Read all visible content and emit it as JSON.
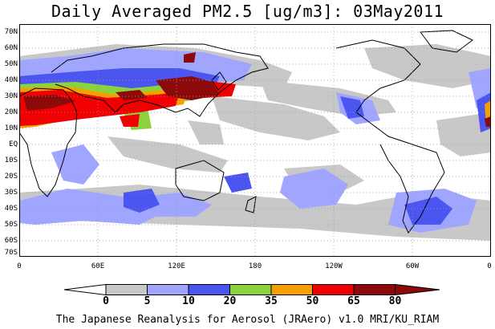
{
  "title": "Daily Averaged PM2.5 [ug/m3]: 03May2011",
  "credit": "The Japanese Reanalysis for Aerosol (JRAero) v1.0 MRI/KU_RIAM",
  "lat_labels": [
    "70N",
    "60N",
    "50N",
    "40N",
    "30N",
    "20N",
    "10N",
    "EQ",
    "10S",
    "20S",
    "30S",
    "40S",
    "50S",
    "60S",
    "70S"
  ],
  "lon_labels": [
    "0",
    "60E",
    "120E",
    "180",
    "120W",
    "60W",
    "0"
  ],
  "colorbar": {
    "ticks": [
      "0",
      "5",
      "10",
      "20",
      "35",
      "50",
      "65",
      "80"
    ],
    "colors": [
      "#ffffff",
      "#c8c8c8",
      "#a0a6ff",
      "#4b55f0",
      "#8cd23c",
      "#f5a000",
      "#f00000",
      "#8c0a0a"
    ]
  },
  "palette": {
    "gray": "#c8c8c8",
    "light_blue": "#a0a6ff",
    "blue": "#4b55f0",
    "green": "#8cd23c",
    "orange": "#f5a000",
    "red": "#f00000",
    "dark_red": "#8c0a0a"
  }
}
